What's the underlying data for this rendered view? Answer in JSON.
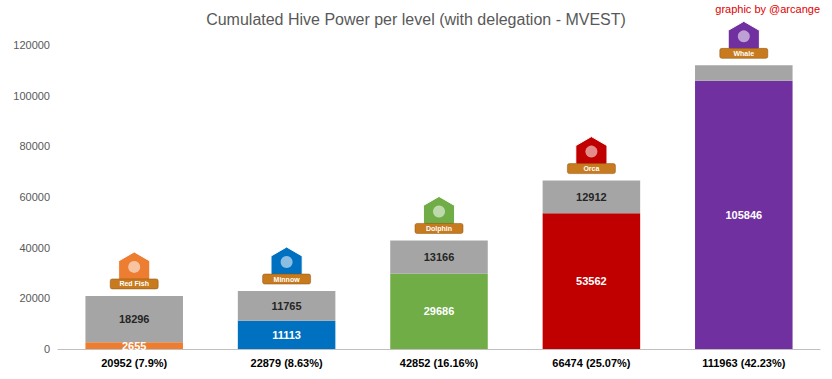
{
  "chart_data": {
    "type": "bar",
    "title": "Cumulated Hive Power per level (with delegation - MVEST)",
    "annotation": "graphic by @arcange",
    "level_labels": [
      "Red Fish",
      "Minnow",
      "Dolphin",
      "Orca",
      "Whale"
    ],
    "categories": [
      "20952 (7.9%)",
      "22879 (8.63%)",
      "42852 (16.16%)",
      "66474 (25.07%)",
      "111963 (42.23%)"
    ],
    "series": [
      {
        "colors": [
          "#ed7d31",
          "#0070c0",
          "#70ad47",
          "#c00000",
          "#7030a0"
        ],
        "values": [
          2655,
          11113,
          29686,
          53562,
          105846
        ]
      },
      {
        "color": "#a5a5a5",
        "values": [
          18296,
          11765,
          13166,
          12912,
          6117
        ],
        "value_labels": [
          "18296",
          "11765",
          "13166",
          "12912",
          null
        ]
      }
    ],
    "ylim": [
      0,
      120000
    ],
    "yticks": [
      0,
      20000,
      40000,
      60000,
      80000,
      100000,
      120000
    ],
    "grid": false,
    "stacked": true,
    "data_labels": true
  }
}
